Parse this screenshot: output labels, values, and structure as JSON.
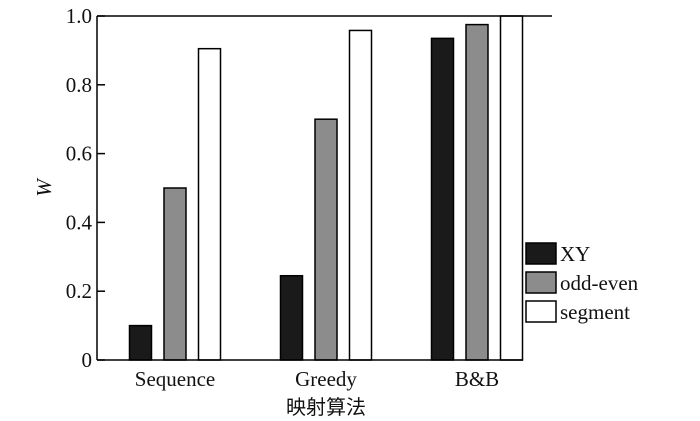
{
  "chart_data": {
    "type": "bar",
    "categories": [
      "Sequence",
      "Greedy",
      "B&B"
    ],
    "series": [
      {
        "name": "XY",
        "values": [
          0.1,
          0.245,
          0.935
        ],
        "color": "#1a1a1a"
      },
      {
        "name": "odd-even",
        "values": [
          0.5,
          0.7,
          0.975
        ],
        "color": "#8c8c8c"
      },
      {
        "name": "segment",
        "values": [
          0.905,
          0.958,
          1.0
        ],
        "color": "#ffffff"
      }
    ],
    "xlabel": "映射算法",
    "ylabel": "W",
    "ylim": [
      0,
      1.0
    ],
    "yticks": [
      "0",
      "0.2",
      "0.4",
      "0.6",
      "0.8",
      "1.0"
    ],
    "grid": false,
    "legend_position": "right"
  }
}
